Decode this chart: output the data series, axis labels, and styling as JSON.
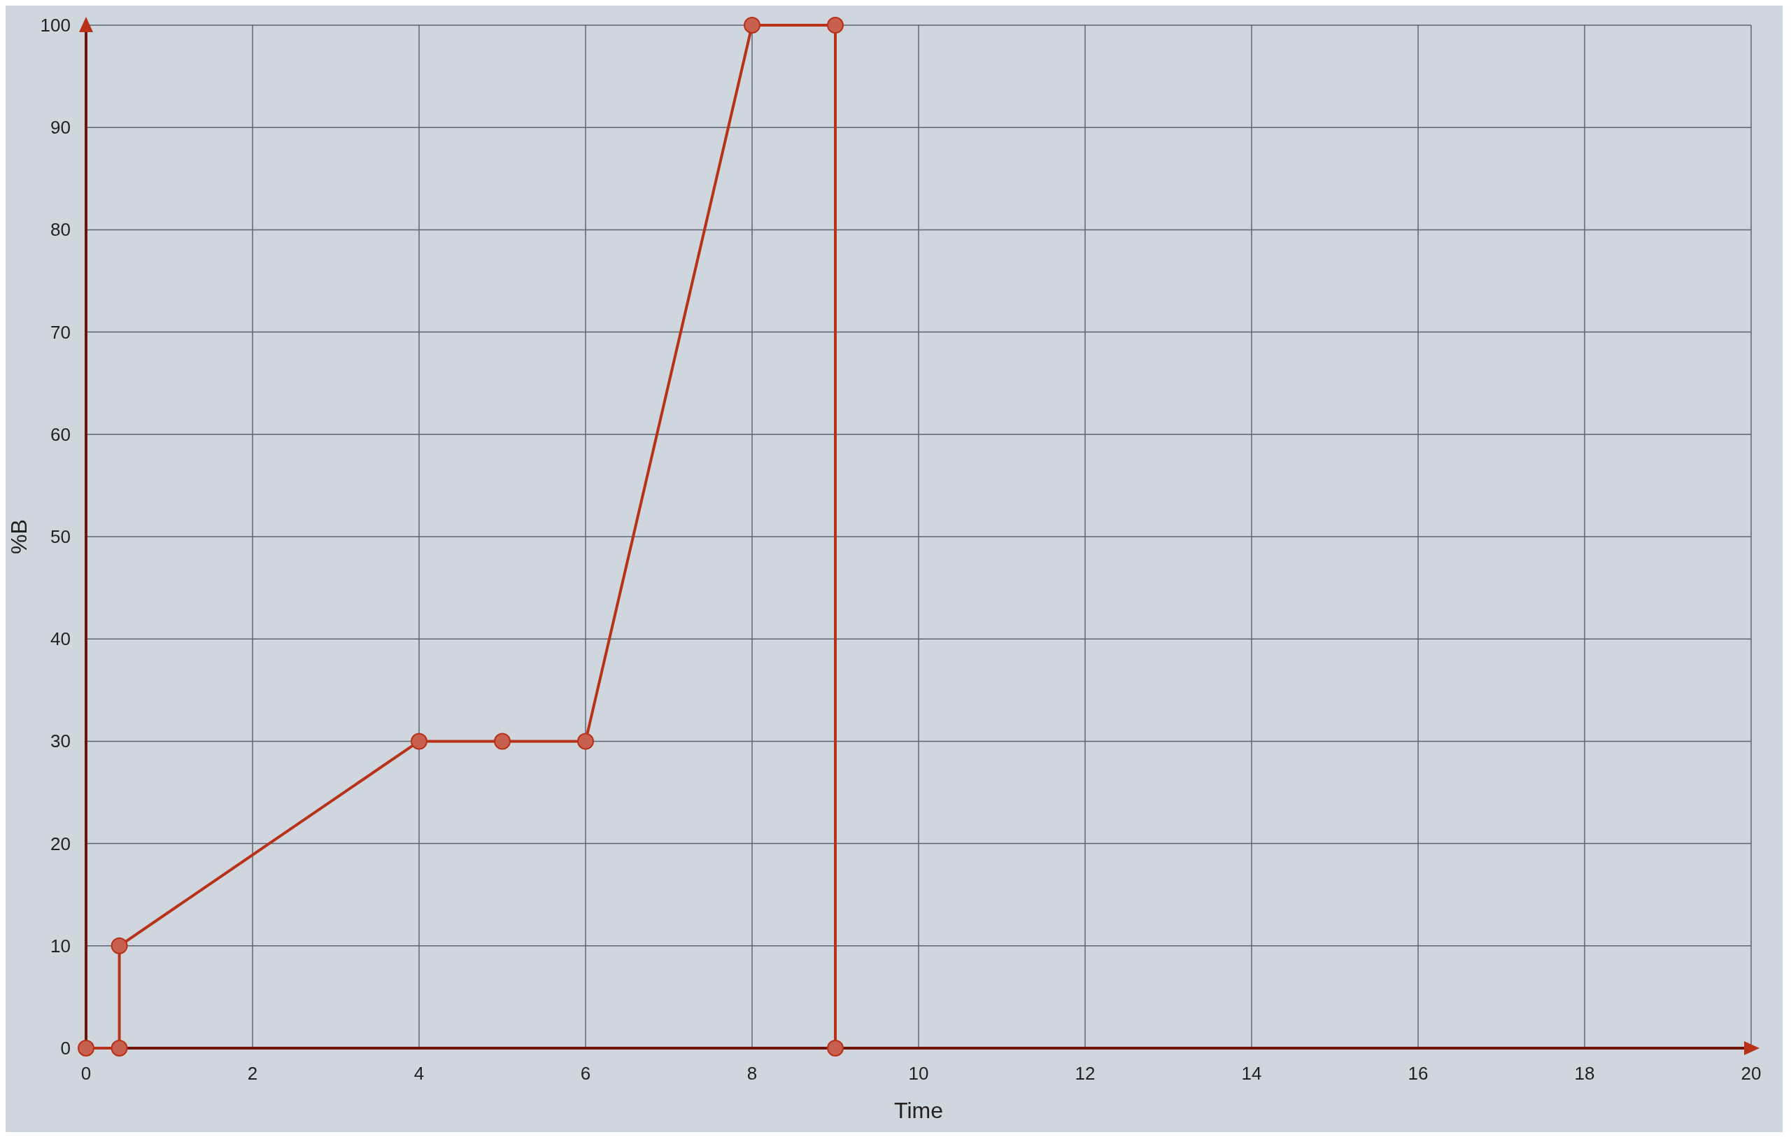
{
  "chart_data": {
    "type": "line",
    "xlabel": "Time",
    "ylabel": "%B",
    "series": [
      {
        "color": "#b8321a",
        "x": [
          0,
          0.4,
          0.4,
          4,
          5,
          6,
          8,
          9,
          9
        ],
        "values": [
          0,
          0,
          10,
          30,
          30,
          30,
          100,
          100,
          0
        ]
      }
    ],
    "xlim": [
      0,
      20
    ],
    "xticks": [
      0,
      2,
      4,
      6,
      8,
      10,
      12,
      14,
      16,
      18,
      20
    ],
    "ylim": [
      0,
      100
    ],
    "yticks": [
      0,
      10,
      20,
      30,
      40,
      50,
      60,
      70,
      80,
      90,
      100
    ],
    "grid": true,
    "marker": "circle",
    "line_style": "solid"
  }
}
